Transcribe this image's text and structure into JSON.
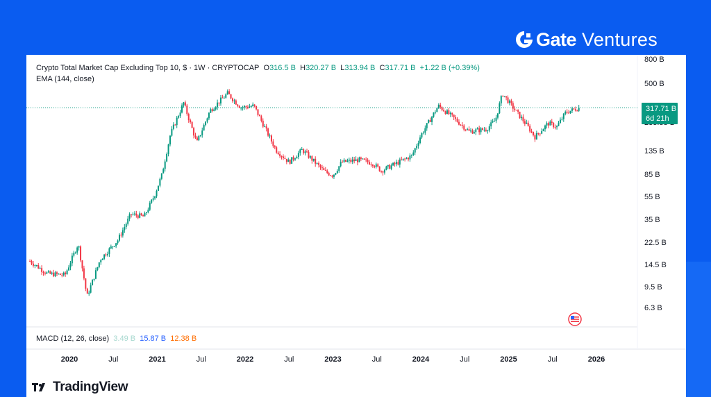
{
  "brand": {
    "name": "Gate",
    "sub": "Ventures"
  },
  "legend": {
    "title": "Crypto Total Market Cap Excluding Top 10, $ · 1W · CRYPTOCAP",
    "o_label": "O",
    "o_value": "316.5 B",
    "h_label": "H",
    "h_value": "320.27 B",
    "l_label": "L",
    "l_value": "313.94 B",
    "c_label": "C",
    "c_value": "317.71 B",
    "change": "+1.22 B (+0.39%)",
    "ema": "EMA (144, close)"
  },
  "price_box": {
    "value": "317.71 B",
    "countdown": "6d 21h"
  },
  "macd": {
    "label": "MACD (12, 26, close)",
    "v1": "3.49 B",
    "v2": "15.87 B",
    "v3": "12.38 B"
  },
  "watermark": "TradingView",
  "colors": {
    "up": "#089981",
    "down": "#f23645",
    "macd1": "#a7d8cf",
    "macd2": "#2962ff",
    "macd3": "#ff6d00",
    "brand_bg": "#0a5cf0"
  },
  "chart_data": {
    "type": "candlestick",
    "scale": "log",
    "y_ticks": [
      {
        "label": "800 B",
        "value": 800
      },
      {
        "label": "500 B",
        "value": 500
      },
      {
        "label": "233.33 B",
        "value": 233.33
      },
      {
        "label": "135 B",
        "value": 135
      },
      {
        "label": "85 B",
        "value": 85
      },
      {
        "label": "55 B",
        "value": 55
      },
      {
        "label": "35 B",
        "value": 35
      },
      {
        "label": "22.5 B",
        "value": 22.5
      },
      {
        "label": "14.5 B",
        "value": 14.5
      },
      {
        "label": "9.5 B",
        "value": 9.5
      },
      {
        "label": "6.3 B",
        "value": 6.3
      }
    ],
    "x_ticks": [
      {
        "label": "2020",
        "t": 2020.0,
        "bold": true
      },
      {
        "label": "Jul",
        "t": 2020.5,
        "bold": false
      },
      {
        "label": "2021",
        "t": 2021.0,
        "bold": true
      },
      {
        "label": "Jul",
        "t": 2021.5,
        "bold": false
      },
      {
        "label": "2022",
        "t": 2022.0,
        "bold": true
      },
      {
        "label": "Jul",
        "t": 2022.5,
        "bold": false
      },
      {
        "label": "2023",
        "t": 2023.0,
        "bold": true
      },
      {
        "label": "Jul",
        "t": 2023.5,
        "bold": false
      },
      {
        "label": "2024",
        "t": 2024.0,
        "bold": true
      },
      {
        "label": "Jul",
        "t": 2024.5,
        "bold": false
      },
      {
        "label": "2025",
        "t": 2025.0,
        "bold": true
      },
      {
        "label": "Jul",
        "t": 2025.5,
        "bold": false
      },
      {
        "label": "2026",
        "t": 2026.0,
        "bold": true
      }
    ],
    "last_close": 317.71,
    "series": [
      {
        "t": 2019.55,
        "close": 16
      },
      {
        "t": 2019.75,
        "close": 12.5
      },
      {
        "t": 2019.95,
        "close": 12.2
      },
      {
        "t": 2020.1,
        "close": 22.5
      },
      {
        "t": 2020.2,
        "close": 8.0
      },
      {
        "t": 2020.35,
        "close": 16.5
      },
      {
        "t": 2020.55,
        "close": 24
      },
      {
        "t": 2020.7,
        "close": 40
      },
      {
        "t": 2020.85,
        "close": 38
      },
      {
        "t": 2020.97,
        "close": 58
      },
      {
        "t": 2021.05,
        "close": 85
      },
      {
        "t": 2021.15,
        "close": 190
      },
      {
        "t": 2021.3,
        "close": 350
      },
      {
        "t": 2021.45,
        "close": 160
      },
      {
        "t": 2021.6,
        "close": 300
      },
      {
        "t": 2021.8,
        "close": 420
      },
      {
        "t": 2021.95,
        "close": 320
      },
      {
        "t": 2022.1,
        "close": 330
      },
      {
        "t": 2022.35,
        "close": 140
      },
      {
        "t": 2022.5,
        "close": 110
      },
      {
        "t": 2022.65,
        "close": 140
      },
      {
        "t": 2022.9,
        "close": 92
      },
      {
        "t": 2023.0,
        "close": 85
      },
      {
        "t": 2023.1,
        "close": 110
      },
      {
        "t": 2023.3,
        "close": 115
      },
      {
        "t": 2023.45,
        "close": 108
      },
      {
        "t": 2023.55,
        "close": 93
      },
      {
        "t": 2023.75,
        "close": 110
      },
      {
        "t": 2023.9,
        "close": 125
      },
      {
        "t": 2024.0,
        "close": 185
      },
      {
        "t": 2024.2,
        "close": 330
      },
      {
        "t": 2024.35,
        "close": 270
      },
      {
        "t": 2024.55,
        "close": 200
      },
      {
        "t": 2024.75,
        "close": 210
      },
      {
        "t": 2024.85,
        "close": 250
      },
      {
        "t": 2024.93,
        "close": 420
      },
      {
        "t": 2025.05,
        "close": 320
      },
      {
        "t": 2025.2,
        "close": 230
      },
      {
        "t": 2025.3,
        "close": 180
      },
      {
        "t": 2025.45,
        "close": 235
      },
      {
        "t": 2025.55,
        "close": 220
      },
      {
        "t": 2025.65,
        "close": 290
      },
      {
        "t": 2025.76,
        "close": 310
      },
      {
        "t": 2025.8,
        "close": 317.71
      }
    ]
  }
}
